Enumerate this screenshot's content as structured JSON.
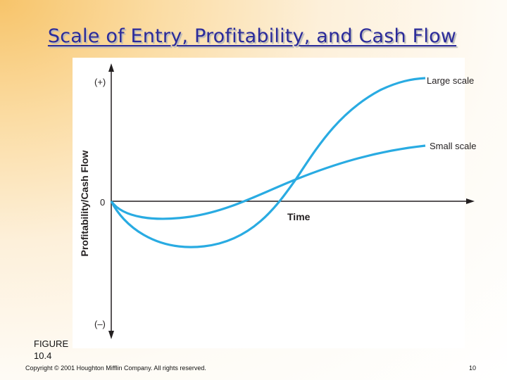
{
  "title": "Scale of Entry, Profitability, and Cash Flow",
  "figure": {
    "y_axis_label": "Profitability/Cash Flow",
    "y_plus": "(+)",
    "y_minus": "(–)",
    "zero": "0",
    "x_axis_label": "Time",
    "curves": [
      {
        "name": "Large scale",
        "color": "#29abe2"
      },
      {
        "name": "Small scale",
        "color": "#29abe2"
      }
    ],
    "axis_color": "#231f20"
  },
  "figure_label_line1": "FIGURE",
  "figure_label_line2": "10.4",
  "footer": {
    "copyright": "Copyright © 2001 Houghton Mifflin Company. All rights reserved.",
    "page": "10"
  }
}
